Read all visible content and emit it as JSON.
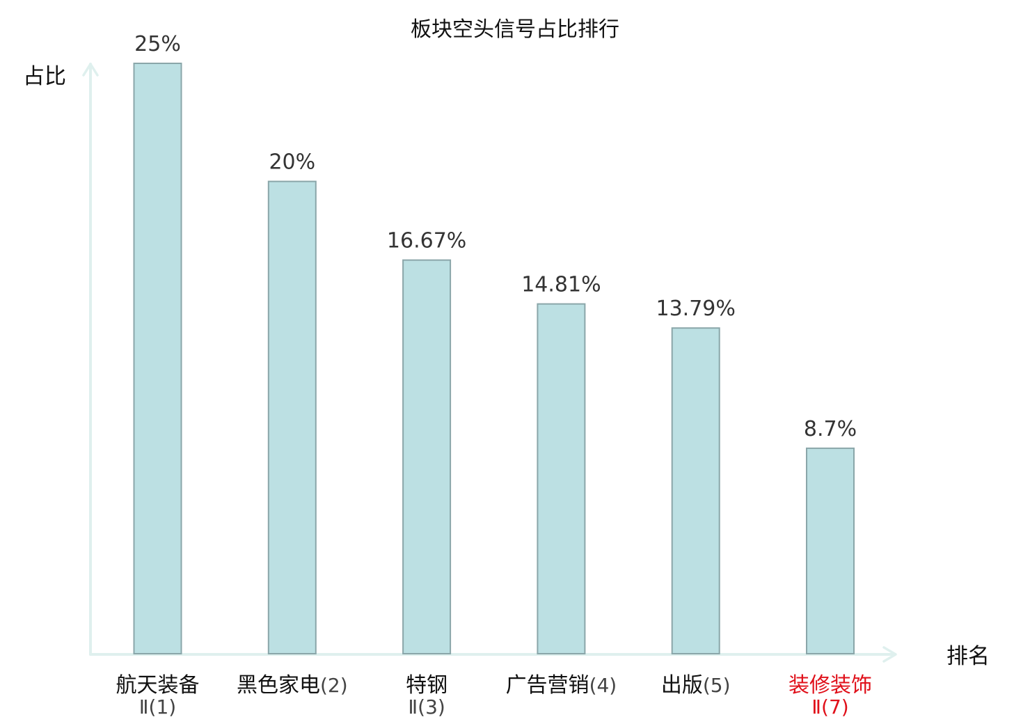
{
  "chart_data": {
    "type": "bar",
    "title": "板块空头信号占比排行",
    "ylabel": "占比",
    "xlabel": "排名",
    "categories": [
      {
        "name": "航天装备",
        "rank": "Ⅱ(1)",
        "highlight": false
      },
      {
        "name": "黑色家电",
        "rank": "(2)",
        "highlight": false
      },
      {
        "name": "特钢",
        "rank": "Ⅱ(3)",
        "highlight": false
      },
      {
        "name": "广告营销",
        "rank": "(4)",
        "highlight": false
      },
      {
        "name": "出版",
        "rank": "(5)",
        "highlight": false
      },
      {
        "name": "装修装饰",
        "rank": "Ⅱ(7)",
        "highlight": true
      }
    ],
    "values": [
      25,
      20,
      16.67,
      14.81,
      13.79,
      8.7
    ],
    "value_labels": [
      "25%",
      "20%",
      "16.67%",
      "14.81%",
      "13.79%",
      "8.7%"
    ],
    "ylim": [
      0,
      25
    ],
    "grid": false,
    "colors": {
      "bar_fill": "#bce0e3",
      "bar_stroke": "#8aa6a9",
      "axis": "#dff0ee",
      "label": "#333333",
      "category_text": "#111111",
      "rank_text": "#444444",
      "highlight": "#e0101a"
    }
  }
}
